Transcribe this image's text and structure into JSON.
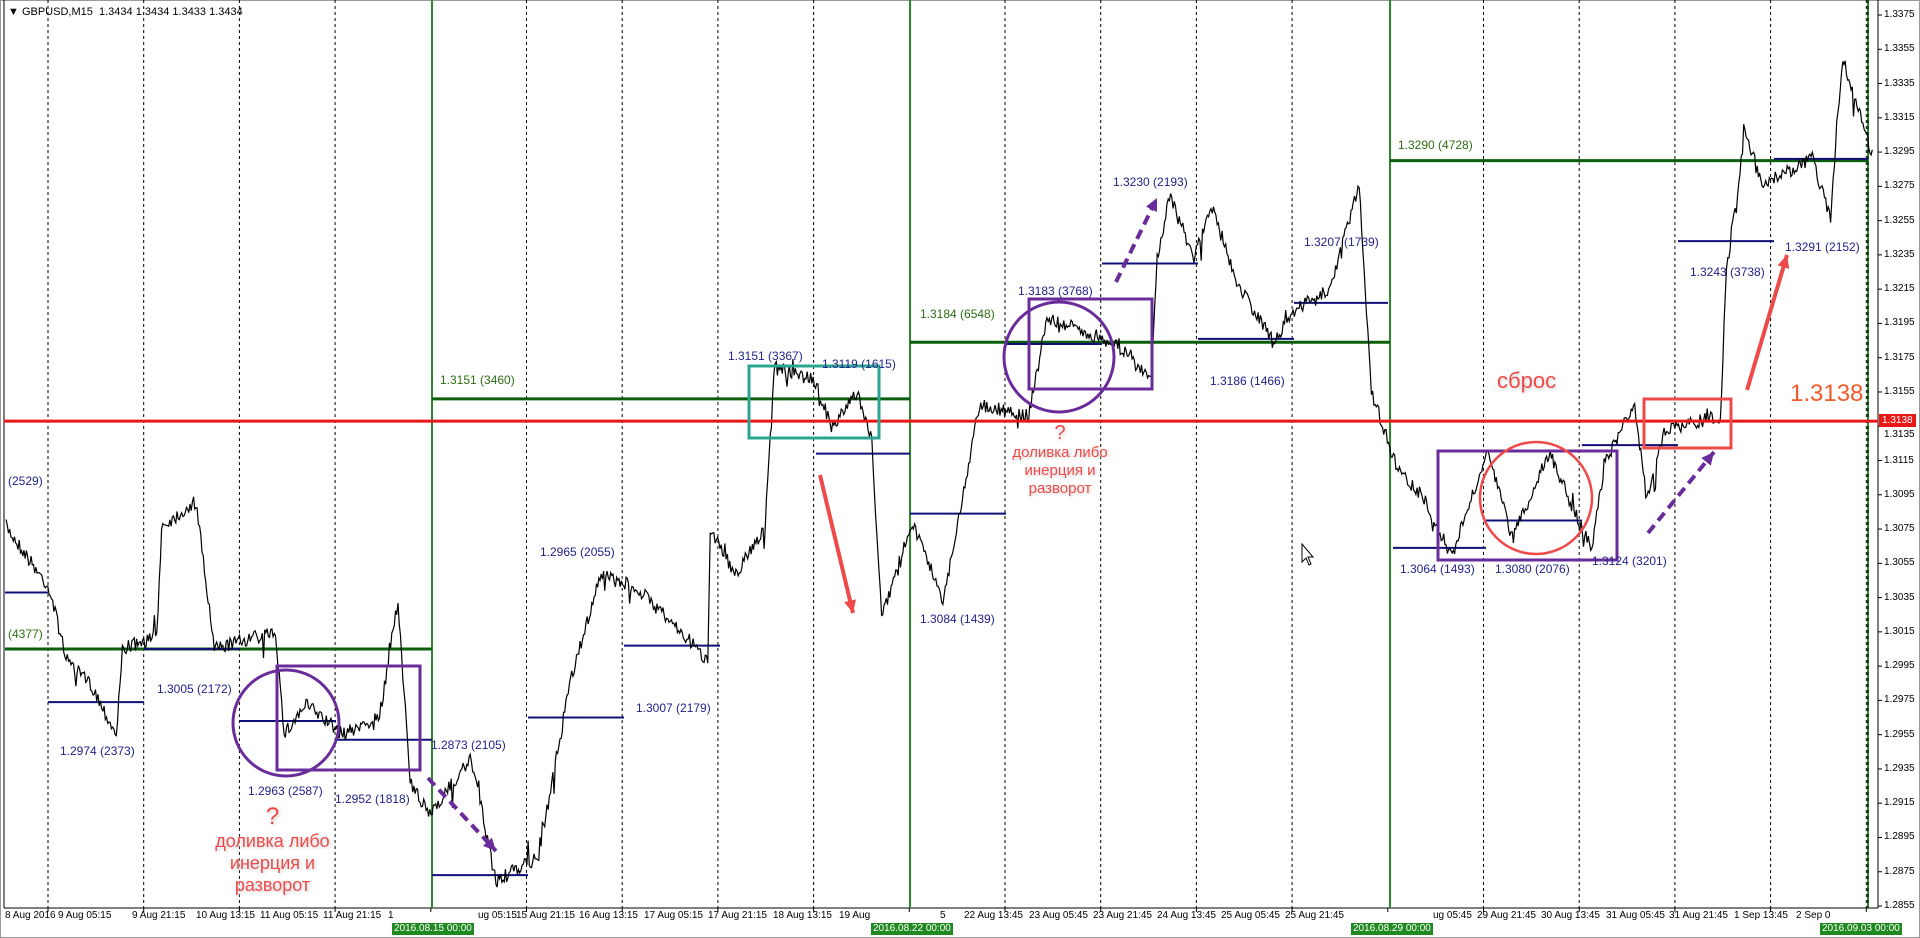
{
  "header": {
    "symbol_text": "GBPUSD,M15",
    "prices": "1.3434 1.3434 1.3433 1.3434",
    "dropdown_icon": "triangle-down-icon"
  },
  "price_axis": {
    "labels": [
      "1.3375",
      "1.3355",
      "1.3335",
      "1.3315",
      "1.3295",
      "1.3275",
      "1.3255",
      "1.3235",
      "1.3215",
      "1.3195",
      "1.3175",
      "1.3155",
      "1.3135",
      "1.3115",
      "1.3095",
      "1.3075",
      "1.3055",
      "1.3035",
      "1.3015",
      "1.2995",
      "1.2975",
      "1.2955",
      "1.2935",
      "1.2915",
      "1.2895",
      "1.2875",
      "1.2855"
    ],
    "current_tag": "1.3138",
    "current_tag_color": "#e81818"
  },
  "time_axis": {
    "labels": [
      "8 Aug 2016",
      "9 Aug 05:15",
      "9 Aug 21:15",
      "10 Aug 13:15",
      "11 Aug 05:15",
      "11 Aug 21:15",
      "1",
      "ug 05:15",
      "15 Aug 21:15",
      "16 Aug 13:15",
      "17 Aug 05:15",
      "17 Aug 21:15",
      "18 Aug 13:15",
      "19 Aug",
      "5",
      "22 Aug 13:45",
      "23 Aug 05:45",
      "23 Aug 21:45",
      "24 Aug 13:45",
      "25 Aug 05:45",
      "25 Aug 21:45",
      "ug 05:45",
      "29 Aug 21:45",
      "30 Aug 13:45",
      "31 Aug 05:45",
      "31 Aug 21:45",
      "1 Sep 13:45",
      "2 Sep 0"
    ],
    "week_markers": [
      "2016.08.15 00:00",
      "2016.08.22 00:00",
      "2016.08.29 00:00",
      "2016.09.03 00:00"
    ]
  },
  "weekly_levels": [
    {
      "label": "(4377)",
      "price": 1.3005
    },
    {
      "label": "1.3151 (3460)",
      "price": 1.3151
    },
    {
      "label": "1.3184 (6548)",
      "price": 1.3184
    },
    {
      "label": "1.3290 (4728)",
      "price": 1.329
    }
  ],
  "daily_levels": [
    {
      "label": "(2529)",
      "price": 1.3038
    },
    {
      "label": "1.2974 (2373)",
      "price": 1.2974
    },
    {
      "label": "1.3005 (2172)",
      "price": 1.3005
    },
    {
      "label": "1.2963 (2587)",
      "price": 1.2963
    },
    {
      "label": "1.2952 (1818)",
      "price": 1.2952
    },
    {
      "label": "1.2873 (2105)",
      "price": 1.2873
    },
    {
      "label": "1.2965 (2055)",
      "price": 1.2965
    },
    {
      "label": "1.3007 (2179)",
      "price": 1.3007
    },
    {
      "label": "1.3151 (3367)",
      "price": 1.3151
    },
    {
      "label": "1.3119 (1615)",
      "price": 1.3119
    },
    {
      "label": "1.3084 (1439)",
      "price": 1.3084
    },
    {
      "label": "1.3183 (3768)",
      "price": 1.3183
    },
    {
      "label": "1.3230 (2193)",
      "price": 1.323
    },
    {
      "label": "1.3186 (1466)",
      "price": 1.3186
    },
    {
      "label": "1.3207 (1739)",
      "price": 1.3207
    },
    {
      "label": "1.3064 (1493)",
      "price": 1.3064
    },
    {
      "label": "1.3080 (2076)",
      "price": 1.308
    },
    {
      "label": "1.3124 (3201)",
      "price": 1.3124
    },
    {
      "label": "1.3243 (3738)",
      "price": 1.3243
    },
    {
      "label": "1.3291 (2152)",
      "price": 1.3291
    }
  ],
  "key_level": {
    "price": 1.3138,
    "label": "1.3138 (",
    "color": "#e81818"
  },
  "annotations": {
    "question": "?",
    "note1": [
      "доливка либо",
      "инерция и",
      "разворот"
    ],
    "note2": [
      "доливка либо",
      "инерция и",
      "разворот"
    ],
    "reset": "сброс"
  },
  "colors": {
    "weekly": "#0b5e0b",
    "daily": "#10107a",
    "purple": "#6a2c9a",
    "teal": "#2aa592",
    "red_mark": "#ef4a4a",
    "week_separator": "#2a8a2a"
  }
}
